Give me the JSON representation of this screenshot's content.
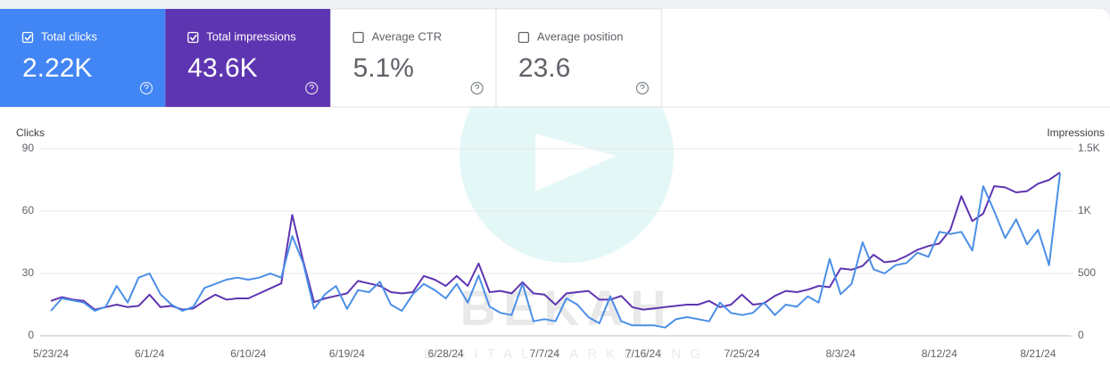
{
  "cards": [
    {
      "label": "Total clicks",
      "value": "2.22K",
      "checked": true,
      "color": "#4285f4"
    },
    {
      "label": "Total impressions",
      "value": "43.6K",
      "checked": true,
      "color": "#5e35b1"
    },
    {
      "label": "Average CTR",
      "value": "5.1%",
      "checked": false,
      "color": "#ffffff"
    },
    {
      "label": "Average position",
      "value": "23.6",
      "checked": false,
      "color": "#ffffff"
    }
  ],
  "watermark": {
    "brand": "BEKAH",
    "tagline": "DIGITAL MARKETING"
  },
  "chart_data": {
    "type": "line",
    "y_label": "Clicks",
    "y2_label": "Impressions",
    "categories": [
      "5/23/24",
      null,
      null,
      null,
      null,
      null,
      null,
      null,
      null,
      "6/1/24",
      null,
      null,
      null,
      null,
      null,
      null,
      null,
      null,
      "6/10/24",
      null,
      null,
      null,
      null,
      null,
      null,
      null,
      null,
      "6/19/24",
      null,
      null,
      null,
      null,
      null,
      null,
      null,
      null,
      "6/28/24",
      null,
      null,
      null,
      null,
      null,
      null,
      null,
      null,
      "7/7/24",
      null,
      null,
      null,
      null,
      null,
      null,
      null,
      null,
      "7/16/24",
      null,
      null,
      null,
      null,
      null,
      null,
      null,
      null,
      "7/25/24",
      null,
      null,
      null,
      null,
      null,
      null,
      null,
      null,
      "8/3/24",
      null,
      null,
      null,
      null,
      null,
      null,
      null,
      null,
      "8/12/24",
      null,
      null,
      null,
      null,
      null,
      null,
      null,
      null,
      "8/21/24",
      null,
      null
    ],
    "series": [
      {
        "color": "#5e35b1",
        "axis": "y2",
        "values": [
          280,
          310,
          290,
          280,
          210,
          230,
          250,
          230,
          240,
          330,
          230,
          240,
          210,
          220,
          280,
          330,
          290,
          300,
          300,
          340,
          380,
          420,
          970,
          600,
          270,
          300,
          320,
          340,
          440,
          420,
          400,
          350,
          340,
          350,
          480,
          450,
          400,
          480,
          400,
          580,
          350,
          360,
          340,
          430,
          340,
          330,
          250,
          340,
          350,
          360,
          290,
          290,
          320,
          230,
          210,
          220,
          230,
          240,
          250,
          250,
          280,
          230,
          250,
          330,
          250,
          260,
          320,
          360,
          350,
          370,
          400,
          390,
          540,
          530,
          560,
          650,
          590,
          600,
          640,
          690,
          720,
          740,
          850,
          1120,
          920,
          980,
          1200,
          1190,
          1150,
          1160,
          1220,
          1250,
          1310
        ]
      },
      {
        "color": "#4a8fe7",
        "values": [
          12,
          18,
          17,
          16,
          12,
          14,
          24,
          16,
          28,
          30,
          20,
          15,
          12,
          14,
          23,
          25,
          27,
          28,
          27,
          28,
          30,
          28,
          48,
          35,
          13,
          20,
          24,
          13,
          22,
          21,
          26,
          15,
          12,
          20,
          25,
          22,
          18,
          25,
          16,
          29,
          14,
          11,
          10,
          25,
          7,
          8,
          7,
          18,
          15,
          9,
          6,
          19,
          7,
          5,
          5,
          5,
          4,
          8,
          9,
          8,
          7,
          16,
          11,
          10,
          11,
          16,
          10,
          15,
          14,
          19,
          16,
          37,
          20,
          25,
          45,
          32,
          30,
          34,
          35,
          40,
          38,
          50,
          49,
          50,
          41,
          72,
          60,
          47,
          56,
          44,
          51,
          34,
          78
        ]
      }
    ],
    "ylim": [
      0,
      90
    ],
    "yticks": [
      0,
      30,
      60,
      90
    ],
    "y2lim": [
      0,
      1500
    ],
    "y2ticks": [
      0,
      500,
      {
        "value": 1000,
        "label": "1K"
      },
      {
        "value": 1500,
        "label": "1.5K"
      }
    ],
    "grid": true
  }
}
